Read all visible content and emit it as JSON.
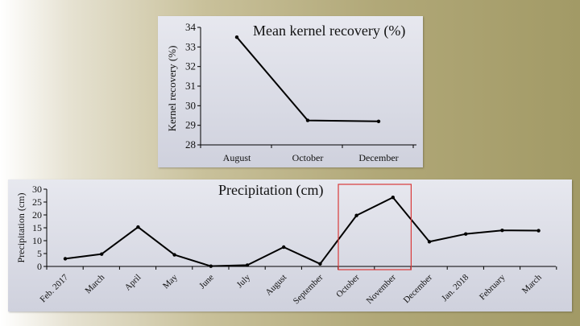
{
  "chart_data": [
    {
      "type": "line",
      "title": "Mean kernel recovery (%)",
      "ylabel": "Kernel recovery (%)",
      "xlabel": "",
      "categories": [
        "August",
        "October",
        "December"
      ],
      "series": [
        {
          "values": [
            33.5,
            29.25,
            29.2
          ]
        }
      ],
      "ylim": [
        28,
        34
      ],
      "yticks": [
        28,
        29,
        30,
        31,
        32,
        33,
        34
      ],
      "grid": false,
      "line_color": "#000000"
    },
    {
      "type": "line",
      "title": "Precipitation (cm)",
      "ylabel": "Precipitation (cm)",
      "xlabel": "",
      "categories": [
        "Feb. 2017",
        "March",
        "April",
        "May",
        "June",
        "July",
        "August",
        "September",
        "October",
        "November",
        "December",
        "Jan. 2018",
        "February",
        "March"
      ],
      "series": [
        {
          "values": [
            3,
            4.8,
            15.3,
            4.5,
            0.1,
            0.5,
            7.5,
            1,
            19.8,
            26.8,
            9.6,
            12.6,
            14,
            13.9
          ]
        }
      ],
      "ylim": [
        0,
        30
      ],
      "yticks": [
        0,
        5,
        10,
        15,
        20,
        25,
        30
      ],
      "grid": false,
      "line_color": "#000000",
      "highlight": {
        "from_category": "October",
        "to_category": "November",
        "color": "#d93a3a"
      }
    }
  ]
}
